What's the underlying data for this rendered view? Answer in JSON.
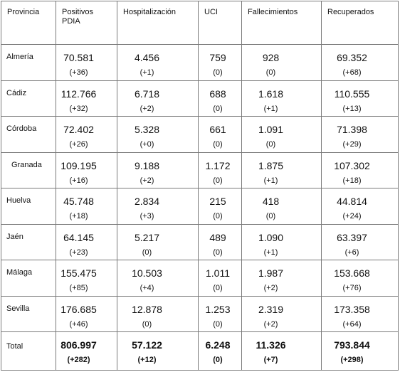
{
  "headers": [
    "Provincia",
    "Positivos PDIA",
    "Hospitalización",
    "UCI",
    "Fallecimientos",
    "Recuperados"
  ],
  "header_positivos_line1": "Positivos",
  "header_positivos_line2": "PDIA",
  "rows": [
    {
      "provincia": "Almería",
      "positivos": "70.581",
      "positivos_d": "(+36)",
      "hosp": "4.456",
      "hosp_d": "(+1)",
      "uci": "759",
      "uci_d": "(0)",
      "fall": "928",
      "fall_d": "(0)",
      "recup": "69.352",
      "recup_d": "(+68)"
    },
    {
      "provincia": "Cádiz",
      "positivos": "112.766",
      "positivos_d": "(+32)",
      "hosp": "6.718",
      "hosp_d": "(+2)",
      "uci": "688",
      "uci_d": "(0)",
      "fall": "1.618",
      "fall_d": "(+1)",
      "recup": "110.555",
      "recup_d": "(+13)"
    },
    {
      "provincia": "Córdoba",
      "positivos": "72.402",
      "positivos_d": "(+26)",
      "hosp": "5.328",
      "hosp_d": "(+0)",
      "uci": "661",
      "uci_d": "(0)",
      "fall": "1.091",
      "fall_d": "(0)",
      "recup": "71.398",
      "recup_d": "(+29)"
    },
    {
      "provincia": "Granada",
      "positivos": "109.195",
      "positivos_d": "(+16)",
      "hosp": "9.188",
      "hosp_d": "(+2)",
      "uci": "1.172",
      "uci_d": "(0)",
      "fall": "1.875",
      "fall_d": "(+1)",
      "recup": "107.302",
      "recup_d": "(+18)"
    },
    {
      "provincia": "Huelva",
      "positivos": "45.748",
      "positivos_d": "(+18)",
      "hosp": "2.834",
      "hosp_d": "(+3)",
      "uci": "215",
      "uci_d": "(0)",
      "fall": "418",
      "fall_d": "(0)",
      "recup": "44.814",
      "recup_d": "(+24)"
    },
    {
      "provincia": "Jaén",
      "positivos": "64.145",
      "positivos_d": "(+23)",
      "hosp": "5.217",
      "hosp_d": "(0)",
      "uci": "489",
      "uci_d": "(0)",
      "fall": "1.090",
      "fall_d": "(+1)",
      "recup": "63.397",
      "recup_d": "(+6)"
    },
    {
      "provincia": "Málaga",
      "positivos": "155.475",
      "positivos_d": "(+85)",
      "hosp": "10.503",
      "hosp_d": "(+4)",
      "uci": "1.011",
      "uci_d": "(0)",
      "fall": "1.987",
      "fall_d": "(+2)",
      "recup": "153.668",
      "recup_d": "(+76)"
    },
    {
      "provincia": "Sevilla",
      "positivos": "176.685",
      "positivos_d": "(+46)",
      "hosp": "12.878",
      "hosp_d": "(0)",
      "uci": "1.253",
      "uci_d": "(0)",
      "fall": "2.319",
      "fall_d": "(+2)",
      "recup": "173.358",
      "recup_d": "(+64)"
    }
  ],
  "total": {
    "provincia": "Total",
    "positivos": "806.997",
    "positivos_d": "(+282)",
    "hosp": "57.122",
    "hosp_d": "(+12)",
    "uci": "6.248",
    "uci_d": "(0)",
    "fall": "11.326",
    "fall_d": "(+7)",
    "recup": "793.844",
    "recup_d": "(+298)"
  }
}
